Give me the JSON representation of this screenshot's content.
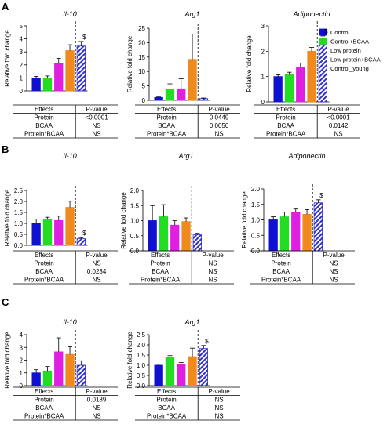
{
  "panel_letters": [
    "A",
    "B",
    "C"
  ],
  "ylabel": "Relative fold change",
  "legend": {
    "entries": [
      {
        "label": "Control",
        "color": "#1010d0",
        "hatched": false
      },
      {
        "label": "Control+BCAA",
        "color": "#22dd22",
        "hatched": false
      },
      {
        "label": "Low protein",
        "color": "#e020e0",
        "hatched": false
      },
      {
        "label": "Low protein+BCAA",
        "color": "#f08a1c",
        "hatched": false
      },
      {
        "label": "Control_young",
        "color": "#3030d0",
        "hatched": true
      }
    ]
  },
  "table_header": {
    "effects": "Effects",
    "pvalue": "P-value"
  },
  "chart_data": [
    {
      "id": "A1",
      "type": "bar",
      "panel": "A",
      "title": "Il-10",
      "categories": [
        "Control",
        "Control+BCAA",
        "Low protein",
        "Low protein+BCAA",
        "Control_young"
      ],
      "values": [
        1.0,
        1.0,
        2.1,
        3.1,
        3.45
      ],
      "errors": [
        0.12,
        0.15,
        0.4,
        0.45,
        0.35
      ],
      "ylim": [
        0,
        5
      ],
      "yticks": [
        "0",
        "1",
        "2",
        "3",
        "4",
        "5"
      ],
      "sig": "$",
      "table": [
        [
          "Protein",
          "<0.0001"
        ],
        [
          "BCAA",
          "NS"
        ],
        [
          "Protein*BCAA",
          "NS"
        ]
      ]
    },
    {
      "id": "A2",
      "type": "bar",
      "panel": "A",
      "title": "Arg1",
      "categories": [
        "Control",
        "Control+BCAA",
        "Low protein",
        "Low protein+BCAA",
        "Control_young"
      ],
      "values": [
        1.0,
        3.7,
        4.0,
        14.2,
        0.6
      ],
      "errors": [
        0.3,
        2.0,
        3.5,
        8.8,
        0.2
      ],
      "ylim": [
        0,
        25
      ],
      "yticks": [
        "0",
        "5",
        "10",
        "15",
        "20",
        "25"
      ],
      "sig": "",
      "table": [
        [
          "Protein",
          "0.0449"
        ],
        [
          "BCAA",
          "0.0050"
        ],
        [
          "Protein*BCAA",
          "NS"
        ]
      ]
    },
    {
      "id": "A3",
      "type": "bar",
      "panel": "A",
      "title": "Adiponectin",
      "categories": [
        "Control",
        "Control+BCAA",
        "Low protein",
        "Low protein+BCAA",
        "Control_young"
      ],
      "values": [
        1.0,
        1.07,
        1.38,
        2.0,
        2.25
      ],
      "errors": [
        0.07,
        0.1,
        0.15,
        0.15,
        0.35
      ],
      "ylim": [
        0,
        3
      ],
      "yticks": [
        "0",
        "1",
        "2",
        "3"
      ],
      "sig": "$",
      "table": [
        [
          "Protein",
          "<0.0001"
        ],
        [
          "BCAA",
          "0.0142"
        ],
        [
          "Protein*BCAA",
          "NS"
        ]
      ]
    },
    {
      "id": "B1",
      "type": "bar",
      "panel": "B",
      "title": "Il-10",
      "categories": [
        "Control",
        "Control+BCAA",
        "Low protein",
        "Low protein+BCAA",
        "Control_young"
      ],
      "values": [
        1.0,
        1.18,
        1.13,
        1.73,
        0.3
      ],
      "errors": [
        0.2,
        0.1,
        0.2,
        0.28,
        0.05
      ],
      "ylim": [
        0,
        2.5
      ],
      "yticks": [
        "0.0",
        "0.5",
        "1.0",
        "1.5",
        "2.0",
        "2.5"
      ],
      "sig": "$",
      "table": [
        [
          "Protein",
          "NS"
        ],
        [
          "BCAA",
          "0.0234"
        ],
        [
          "Protein*BCAA",
          "NS"
        ]
      ]
    },
    {
      "id": "B2",
      "type": "bar",
      "panel": "B",
      "title": "Arg1",
      "categories": [
        "Control",
        "Control+BCAA",
        "Low protein",
        "Low protein+BCAA",
        "Control_young"
      ],
      "values": [
        1.0,
        1.13,
        0.85,
        0.97,
        0.53
      ],
      "errors": [
        0.5,
        0.4,
        0.15,
        0.12,
        0.05
      ],
      "ylim": [
        0,
        2.0
      ],
      "yticks": [
        "0.0",
        "0.5",
        "1.0",
        "1.5",
        "2.0"
      ],
      "sig": "",
      "table": [
        [
          "Protein",
          "NS"
        ],
        [
          "BCAA",
          "NS"
        ],
        [
          "Protein*BCAA",
          "NS"
        ]
      ]
    },
    {
      "id": "B3",
      "type": "bar",
      "panel": "B",
      "title": "Adiponectin",
      "categories": [
        "Control",
        "Control+BCAA",
        "Low protein",
        "Low protein+BCAA",
        "Control_young"
      ],
      "values": [
        1.0,
        1.1,
        1.25,
        1.18,
        1.55
      ],
      "errors": [
        0.1,
        0.15,
        0.1,
        0.15,
        0.1
      ],
      "ylim": [
        0,
        2.0
      ],
      "yticks": [
        "0.0",
        "0.5",
        "1.0",
        "1.5",
        "2.0"
      ],
      "sig": "$",
      "table": [
        [
          "Protein",
          "NS"
        ],
        [
          "BCAA",
          "NS"
        ],
        [
          "Protein*BCAA",
          "NS"
        ]
      ]
    },
    {
      "id": "C1",
      "type": "bar",
      "panel": "C",
      "title": "Il-10",
      "categories": [
        "Control",
        "Control+BCAA",
        "Low protein",
        "Low protein+BCAA",
        "Control_young"
      ],
      "values": [
        1.0,
        1.15,
        2.65,
        2.45,
        1.6
      ],
      "errors": [
        0.25,
        0.35,
        1.1,
        0.6,
        0.35
      ],
      "ylim": [
        0,
        4
      ],
      "yticks": [
        "0",
        "1",
        "2",
        "3",
        "4"
      ],
      "sig": "",
      "table": [
        [
          "Protein",
          "0.0189"
        ],
        [
          "BCAA",
          "NS"
        ],
        [
          "Protein*BCAA",
          "NS"
        ]
      ]
    },
    {
      "id": "C2",
      "type": "bar",
      "panel": "C",
      "title": "Arg1",
      "categories": [
        "Control",
        "Control+BCAA",
        "Low protein",
        "Low protein+BCAA",
        "Control_young"
      ],
      "values": [
        1.0,
        1.37,
        1.05,
        1.42,
        1.82
      ],
      "errors": [
        0.05,
        0.1,
        0.08,
        0.42,
        0.15
      ],
      "ylim": [
        0,
        2.5
      ],
      "yticks": [
        "0.0",
        "0.5",
        "1.0",
        "1.5",
        "2.0",
        "2.5"
      ],
      "sig": "$",
      "table": [
        [
          "Protein",
          "NS"
        ],
        [
          "BCAA",
          "NS"
        ],
        [
          "Protein*BCAA",
          "NS"
        ]
      ]
    }
  ]
}
